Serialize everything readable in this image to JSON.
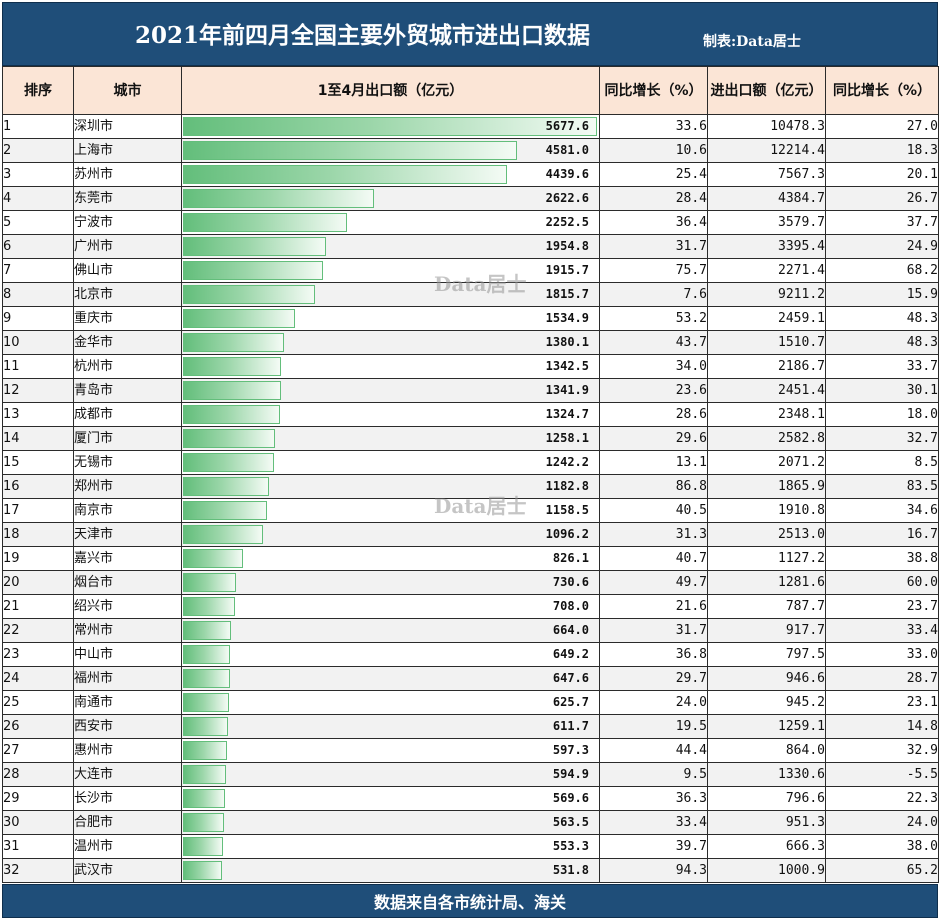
{
  "title": "2021年前四月全国主要外贸城市进出口数据",
  "maker": "制表:Data居士",
  "watermark": "Data居士",
  "footer": "数据来自各市统计局、海关",
  "headers": {
    "rank": "排序",
    "city": "城市",
    "export": "1至4月出口额（亿元）",
    "export_growth": "同比增长（%）",
    "trade": "进出口额（亿元）",
    "trade_growth": "同比增长（%）"
  },
  "max_export": 5677.6,
  "rows": [
    {
      "rank": "1",
      "city": "深圳市",
      "export": "5677.6",
      "export_growth": "33.6",
      "trade": "10478.3",
      "trade_growth": "27.0"
    },
    {
      "rank": "2",
      "city": "上海市",
      "export": "4581.0",
      "export_growth": "10.6",
      "trade": "12214.4",
      "trade_growth": "18.3"
    },
    {
      "rank": "3",
      "city": "苏州市",
      "export": "4439.6",
      "export_growth": "25.4",
      "trade": "7567.3",
      "trade_growth": "20.1"
    },
    {
      "rank": "4",
      "city": "东莞市",
      "export": "2622.6",
      "export_growth": "28.4",
      "trade": "4384.7",
      "trade_growth": "26.7"
    },
    {
      "rank": "5",
      "city": "宁波市",
      "export": "2252.5",
      "export_growth": "36.4",
      "trade": "3579.7",
      "trade_growth": "37.7"
    },
    {
      "rank": "6",
      "city": "广州市",
      "export": "1954.8",
      "export_growth": "31.7",
      "trade": "3395.4",
      "trade_growth": "24.9"
    },
    {
      "rank": "7",
      "city": "佛山市",
      "export": "1915.7",
      "export_growth": "75.7",
      "trade": "2271.4",
      "trade_growth": "68.2"
    },
    {
      "rank": "8",
      "city": "北京市",
      "export": "1815.7",
      "export_growth": "7.6",
      "trade": "9211.2",
      "trade_growth": "15.9"
    },
    {
      "rank": "9",
      "city": "重庆市",
      "export": "1534.9",
      "export_growth": "53.2",
      "trade": "2459.1",
      "trade_growth": "48.3"
    },
    {
      "rank": "10",
      "city": "金华市",
      "export": "1380.1",
      "export_growth": "43.7",
      "trade": "1510.7",
      "trade_growth": "48.3"
    },
    {
      "rank": "11",
      "city": "杭州市",
      "export": "1342.5",
      "export_growth": "34.0",
      "trade": "2186.7",
      "trade_growth": "33.7"
    },
    {
      "rank": "12",
      "city": "青岛市",
      "export": "1341.9",
      "export_growth": "23.6",
      "trade": "2451.4",
      "trade_growth": "30.1"
    },
    {
      "rank": "13",
      "city": "成都市",
      "export": "1324.7",
      "export_growth": "28.6",
      "trade": "2348.1",
      "trade_growth": "18.0"
    },
    {
      "rank": "14",
      "city": "厦门市",
      "export": "1258.1",
      "export_growth": "29.6",
      "trade": "2582.8",
      "trade_growth": "32.7"
    },
    {
      "rank": "15",
      "city": "无锡市",
      "export": "1242.2",
      "export_growth": "13.1",
      "trade": "2071.2",
      "trade_growth": "8.5"
    },
    {
      "rank": "16",
      "city": "郑州市",
      "export": "1182.8",
      "export_growth": "86.8",
      "trade": "1865.9",
      "trade_growth": "83.5"
    },
    {
      "rank": "17",
      "city": "南京市",
      "export": "1158.5",
      "export_growth": "40.5",
      "trade": "1910.8",
      "trade_growth": "34.6"
    },
    {
      "rank": "18",
      "city": "天津市",
      "export": "1096.2",
      "export_growth": "31.3",
      "trade": "2513.0",
      "trade_growth": "16.7"
    },
    {
      "rank": "19",
      "city": "嘉兴市",
      "export": "826.1",
      "export_growth": "40.7",
      "trade": "1127.2",
      "trade_growth": "38.8"
    },
    {
      "rank": "20",
      "city": "烟台市",
      "export": "730.6",
      "export_growth": "49.7",
      "trade": "1281.6",
      "trade_growth": "60.0"
    },
    {
      "rank": "21",
      "city": "绍兴市",
      "export": "708.0",
      "export_growth": "21.6",
      "trade": "787.7",
      "trade_growth": "23.7"
    },
    {
      "rank": "22",
      "city": "常州市",
      "export": "664.0",
      "export_growth": "31.7",
      "trade": "917.7",
      "trade_growth": "33.4"
    },
    {
      "rank": "23",
      "city": "中山市",
      "export": "649.2",
      "export_growth": "36.8",
      "trade": "797.5",
      "trade_growth": "33.0"
    },
    {
      "rank": "24",
      "city": "福州市",
      "export": "647.6",
      "export_growth": "29.7",
      "trade": "946.6",
      "trade_growth": "28.7"
    },
    {
      "rank": "25",
      "city": "南通市",
      "export": "625.7",
      "export_growth": "24.0",
      "trade": "945.2",
      "trade_growth": "23.1"
    },
    {
      "rank": "26",
      "city": "西安市",
      "export": "611.7",
      "export_growth": "19.5",
      "trade": "1259.1",
      "trade_growth": "14.8"
    },
    {
      "rank": "27",
      "city": "惠州市",
      "export": "597.3",
      "export_growth": "44.4",
      "trade": "864.0",
      "trade_growth": "32.9"
    },
    {
      "rank": "28",
      "city": "大连市",
      "export": "594.9",
      "export_growth": "9.5",
      "trade": "1330.6",
      "trade_growth": "-5.5"
    },
    {
      "rank": "29",
      "city": "长沙市",
      "export": "569.6",
      "export_growth": "36.3",
      "trade": "796.6",
      "trade_growth": "22.3"
    },
    {
      "rank": "30",
      "city": "合肥市",
      "export": "563.5",
      "export_growth": "33.4",
      "trade": "951.3",
      "trade_growth": "24.0"
    },
    {
      "rank": "31",
      "city": "温州市",
      "export": "553.3",
      "export_growth": "39.7",
      "trade": "666.3",
      "trade_growth": "38.0"
    },
    {
      "rank": "32",
      "city": "武汉市",
      "export": "531.8",
      "export_growth": "94.3",
      "trade": "1000.9",
      "trade_growth": "65.2"
    }
  ],
  "colors": {
    "title_bg": "#1f4e79",
    "header_bg": "#fbe5d6",
    "bar_start": "#63be7b",
    "bar_end": "#f4fbf5",
    "stripe": "#f2f2f2"
  }
}
